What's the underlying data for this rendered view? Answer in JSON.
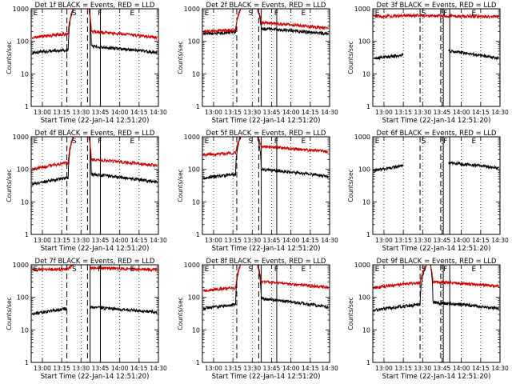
{
  "page": {
    "background": "#ffffff"
  },
  "colors": {
    "events": "#000000",
    "lld": "#d00000",
    "axes": "#000000"
  },
  "chart_data": [
    {
      "type": "line",
      "title": "Det 1f BLACK = Events, RED = LLD",
      "xlabel": "Start Time (22-Jan-14 12:51:20)",
      "ylabel": "Counts/sec",
      "x_start": "12:51:20",
      "x_end": "14:30",
      "yscale": "log",
      "ylim": [
        1,
        1000
      ],
      "xticks": [
        "13:00",
        "13:15",
        "13:30",
        "13:45",
        "14:00",
        "14:15",
        "14:30"
      ],
      "yticks": [
        "1",
        "10",
        "100",
        "1000"
      ],
      "grid": "dotted vertical at ticks",
      "markers": [
        {
          "label": "E",
          "time": "12:53"
        },
        {
          "label": "S",
          "time": "13:23"
        },
        {
          "label": "F",
          "time": "13:43"
        },
        {
          "label": "E",
          "time": "14:08"
        }
      ],
      "dashed_lines": [
        "13:19",
        "13:35"
      ],
      "solid_lines": [
        "13:37",
        "13:45"
      ],
      "series": [
        {
          "name": "Events",
          "color": "#000000",
          "x": [
            "12:52",
            "13:20",
            "13:24",
            "13:36",
            "13:38",
            "14:29"
          ],
          "values": [
            45,
            55,
            1000,
            1000,
            70,
            45
          ]
        },
        {
          "name": "LLD",
          "color": "#d00000",
          "x": [
            "12:52",
            "13:20",
            "13:24",
            "13:36",
            "13:38",
            "14:29"
          ],
          "values": [
            130,
            170,
            1000,
            1000,
            200,
            130
          ]
        }
      ]
    },
    {
      "type": "line",
      "title": "Det 2f BLACK = Events, RED = LLD",
      "xlabel": "Start Time (22-Jan-14 12:51:20)",
      "ylabel": "Counts/sec",
      "x_start": "12:51:20",
      "x_end": "14:30",
      "yscale": "log",
      "ylim": [
        1,
        1000
      ],
      "xticks": [
        "13:00",
        "13:15",
        "13:30",
        "13:45",
        "14:00",
        "14:15",
        "14:30"
      ],
      "yticks": [
        "1",
        "10",
        "100",
        "1000"
      ],
      "grid": "dotted vertical at ticks",
      "markers": [
        {
          "label": "E",
          "time": "12:53"
        },
        {
          "label": "S",
          "time": "13:27"
        },
        {
          "label": "F",
          "time": "13:47"
        },
        {
          "label": "E",
          "time": "14:08"
        }
      ],
      "dashed_lines": [
        "13:18",
        "13:35"
      ],
      "solid_lines": [
        "13:37",
        "13:49"
      ],
      "series": [
        {
          "name": "Events",
          "color": "#000000",
          "x": [
            "12:52",
            "13:17",
            "13:21",
            "13:34",
            "13:37",
            "14:29"
          ],
          "values": [
            170,
            190,
            1000,
            1000,
            250,
            170
          ]
        },
        {
          "name": "LLD",
          "color": "#d00000",
          "x": [
            "12:52",
            "13:17",
            "13:21",
            "13:34",
            "13:37",
            "14:29"
          ],
          "values": [
            200,
            220,
            1000,
            1000,
            380,
            250
          ]
        }
      ]
    },
    {
      "type": "line",
      "title": "Det 3f BLACK = Events, RED = LLD",
      "xlabel": "Start Time (22-Jan-14 12:51:20)",
      "ylabel": "Counts/sec",
      "x_start": "12:51:20",
      "x_end": "14:30",
      "yscale": "log",
      "ylim": [
        1,
        1000
      ],
      "xticks": [
        "13:00",
        "13:15",
        "13:30",
        "13:45",
        "14:00",
        "14:15",
        "14:30"
      ],
      "yticks": [
        "1",
        "10",
        "100",
        "1000"
      ],
      "grid": "dotted vertical at ticks",
      "markers": [
        {
          "label": "E",
          "time": "12:53"
        },
        {
          "label": "S",
          "time": "13:29"
        },
        {
          "label": "F",
          "time": "13:46"
        },
        {
          "label": "E",
          "time": "14:08"
        }
      ],
      "dashed_lines": [
        "13:28",
        "13:44"
      ],
      "solid_lines": [
        "13:46",
        "13:51"
      ],
      "series": [
        {
          "name": "Events",
          "color": "#000000",
          "x": [
            "12:52",
            "13:15",
            "13:28",
            "13:44",
            "13:50",
            "14:29"
          ],
          "values": [
            30,
            38,
            null,
            null,
            50,
            30
          ]
        },
        {
          "name": "LLD",
          "color": "#d00000",
          "x": [
            "12:52",
            "13:28",
            "13:44",
            "14:29"
          ],
          "values": [
            580,
            620,
            600,
            580
          ]
        }
      ]
    },
    {
      "type": "line",
      "title": "Det 4f BLACK = Events, RED = LLD",
      "xlabel": "Start Time (22-Jan-14 12:51:20)",
      "ylabel": "Counts/sec",
      "x_start": "12:51:20",
      "x_end": "14:30",
      "yscale": "log",
      "ylim": [
        1,
        1000
      ],
      "xticks": [
        "13:00",
        "13:15",
        "13:30",
        "13:45",
        "14:00",
        "14:15",
        "14:30"
      ],
      "yticks": [
        "1",
        "10",
        "100",
        "1000"
      ],
      "grid": "dotted vertical at ticks",
      "markers": [
        {
          "label": "E",
          "time": "12:53"
        },
        {
          "label": "S",
          "time": "13:23"
        },
        {
          "label": "F",
          "time": "13:43"
        },
        {
          "label": "E",
          "time": "14:08"
        }
      ],
      "dashed_lines": [
        "13:19",
        "13:35"
      ],
      "solid_lines": [
        "13:37",
        "13:45"
      ],
      "series": [
        {
          "name": "Events",
          "color": "#000000",
          "x": [
            "12:52",
            "13:20",
            "13:24",
            "13:36",
            "13:38",
            "14:29"
          ],
          "values": [
            35,
            55,
            1000,
            1000,
            70,
            40
          ]
        },
        {
          "name": "LLD",
          "color": "#d00000",
          "x": [
            "12:52",
            "13:20",
            "13:24",
            "13:36",
            "13:38",
            "14:29"
          ],
          "values": [
            100,
            160,
            1000,
            1000,
            200,
            130
          ]
        }
      ]
    },
    {
      "type": "line",
      "title": "Det 5f BLACK = Events, RED = LLD",
      "xlabel": "Start Time (22-Jan-14 12:51:20)",
      "ylabel": "Counts/sec",
      "x_start": "12:51:20",
      "x_end": "14:30",
      "yscale": "log",
      "ylim": [
        1,
        1000
      ],
      "xticks": [
        "13:00",
        "13:15",
        "13:30",
        "13:45",
        "14:00",
        "14:15",
        "14:30"
      ],
      "yticks": [
        "1",
        "10",
        "100",
        "1000"
      ],
      "grid": "dotted vertical at ticks",
      "markers": [
        {
          "label": "E",
          "time": "12:53"
        },
        {
          "label": "S",
          "time": "13:27"
        },
        {
          "label": "F",
          "time": "13:47"
        },
        {
          "label": "E",
          "time": "14:08"
        }
      ],
      "dashed_lines": [
        "13:18",
        "13:35"
      ],
      "solid_lines": [
        "13:37",
        "13:49"
      ],
      "series": [
        {
          "name": "Events",
          "color": "#000000",
          "x": [
            "12:52",
            "13:17",
            "13:21",
            "13:34",
            "13:37",
            "14:29"
          ],
          "values": [
            55,
            70,
            1000,
            1000,
            100,
            60
          ]
        },
        {
          "name": "LLD",
          "color": "#d00000",
          "x": [
            "12:52",
            "13:17",
            "13:21",
            "13:34",
            "13:37",
            "14:29"
          ],
          "values": [
            280,
            320,
            1000,
            1000,
            500,
            350
          ]
        }
      ]
    },
    {
      "type": "line",
      "title": "Det 6f BLACK = Events, RED = LLD",
      "xlabel": "Start Time (22-Jan-14 12:51:20)",
      "ylabel": "Counts/sec",
      "x_start": "12:51:20",
      "x_end": "14:30",
      "yscale": "log",
      "ylim": [
        1,
        1000
      ],
      "xticks": [
        "13:00",
        "13:15",
        "13:30",
        "13:45",
        "14:00",
        "14:15",
        "14:30"
      ],
      "yticks": [
        "1",
        "10",
        "100",
        "1000"
      ],
      "grid": "dotted vertical at ticks",
      "markers": [
        {
          "label": "E",
          "time": "12:53"
        },
        {
          "label": "S",
          "time": "13:29"
        },
        {
          "label": "F",
          "time": "13:46"
        },
        {
          "label": "E",
          "time": "14:08"
        }
      ],
      "dashed_lines": [
        "13:28",
        "13:44"
      ],
      "solid_lines": [
        "13:46",
        "13:51"
      ],
      "series": [
        {
          "name": "Events",
          "color": "#000000",
          "x": [
            "12:52",
            "13:15",
            "13:28",
            "13:44",
            "13:50",
            "14:29"
          ],
          "values": [
            90,
            130,
            null,
            null,
            160,
            110
          ]
        }
      ]
    },
    {
      "type": "line",
      "title": "Det 7f BLACK = Events, RED = LLD",
      "xlabel": "Start Time (22-Jan-14 12:51:20)",
      "ylabel": "Counts/sec",
      "x_start": "12:51:20",
      "x_end": "14:30",
      "yscale": "log",
      "ylim": [
        1,
        1000
      ],
      "xticks": [
        "13:00",
        "13:15",
        "13:30",
        "13:45",
        "14:00",
        "14:15",
        "14:30"
      ],
      "yticks": [
        "1",
        "10",
        "100",
        "1000"
      ],
      "grid": "dotted vertical at ticks",
      "markers": [
        {
          "label": "E",
          "time": "12:53"
        },
        {
          "label": "S",
          "time": "13:23"
        },
        {
          "label": "F",
          "time": "13:43"
        },
        {
          "label": "E",
          "time": "14:08"
        }
      ],
      "dashed_lines": [
        "13:19",
        "13:35"
      ],
      "solid_lines": [
        "13:37",
        "13:45"
      ],
      "series": [
        {
          "name": "Events",
          "color": "#000000",
          "x": [
            "12:52",
            "13:19",
            "13:35",
            "13:37",
            "14:29"
          ],
          "values": [
            30,
            45,
            null,
            50,
            35
          ]
        },
        {
          "name": "LLD",
          "color": "#d00000",
          "x": [
            "12:52",
            "13:20",
            "13:24",
            "13:36",
            "13:38",
            "14:29"
          ],
          "values": [
            700,
            750,
            1000,
            1000,
            800,
            700
          ]
        }
      ]
    },
    {
      "type": "line",
      "title": "Det 8f BLACK = Events, RED = LLD",
      "xlabel": "Start Time (22-Jan-14 12:51:20)",
      "ylabel": "Counts/sec",
      "x_start": "12:51:20",
      "x_end": "14:30",
      "yscale": "log",
      "ylim": [
        1,
        1000
      ],
      "xticks": [
        "13:00",
        "13:15",
        "13:30",
        "13:45",
        "14:00",
        "14:15",
        "14:30"
      ],
      "yticks": [
        "1",
        "10",
        "100",
        "1000"
      ],
      "grid": "dotted vertical at ticks",
      "markers": [
        {
          "label": "E",
          "time": "12:53"
        },
        {
          "label": "S",
          "time": "13:27"
        },
        {
          "label": "F",
          "time": "13:47"
        },
        {
          "label": "E",
          "time": "14:08"
        }
      ],
      "dashed_lines": [
        "13:18",
        "13:35"
      ],
      "solid_lines": [
        "13:37",
        "13:49"
      ],
      "series": [
        {
          "name": "Events",
          "color": "#000000",
          "x": [
            "12:52",
            "13:17",
            "13:21",
            "13:34",
            "13:37",
            "14:29"
          ],
          "values": [
            45,
            60,
            1000,
            1000,
            90,
            50
          ]
        },
        {
          "name": "LLD",
          "color": "#d00000",
          "x": [
            "12:52",
            "13:17",
            "13:21",
            "13:34",
            "13:37",
            "14:29"
          ],
          "values": [
            160,
            200,
            1000,
            1000,
            300,
            200
          ]
        }
      ]
    },
    {
      "type": "line",
      "title": "Det 9f BLACK = Events, RED = LLD",
      "xlabel": "Start Time (22-Jan-14 12:51:20)",
      "ylabel": "Counts/sec",
      "x_start": "12:51:20",
      "x_end": "14:30",
      "yscale": "log",
      "ylim": [
        1,
        1000
      ],
      "xticks": [
        "13:00",
        "13:15",
        "13:30",
        "13:45",
        "14:00",
        "14:15",
        "14:30"
      ],
      "yticks": [
        "1",
        "10",
        "100",
        "1000"
      ],
      "grid": "dotted vertical at ticks",
      "markers": [
        {
          "label": "E",
          "time": "12:53"
        },
        {
          "label": "S",
          "time": "13:29"
        },
        {
          "label": "F",
          "time": "13:46"
        },
        {
          "label": "E",
          "time": "14:08"
        }
      ],
      "dashed_lines": [
        "13:28",
        "13:44"
      ],
      "solid_lines": [
        "13:46",
        "13:51"
      ],
      "series": [
        {
          "name": "Events",
          "color": "#000000",
          "x": [
            "12:52",
            "13:28",
            "13:33",
            "13:36",
            "13:38",
            "14:29"
          ],
          "values": [
            40,
            60,
            1000,
            1000,
            70,
            45
          ]
        },
        {
          "name": "LLD",
          "color": "#d00000",
          "x": [
            "12:52",
            "13:28",
            "13:33",
            "13:36",
            "13:38",
            "14:29"
          ],
          "values": [
            200,
            280,
            1000,
            1000,
            300,
            220
          ]
        }
      ]
    }
  ]
}
